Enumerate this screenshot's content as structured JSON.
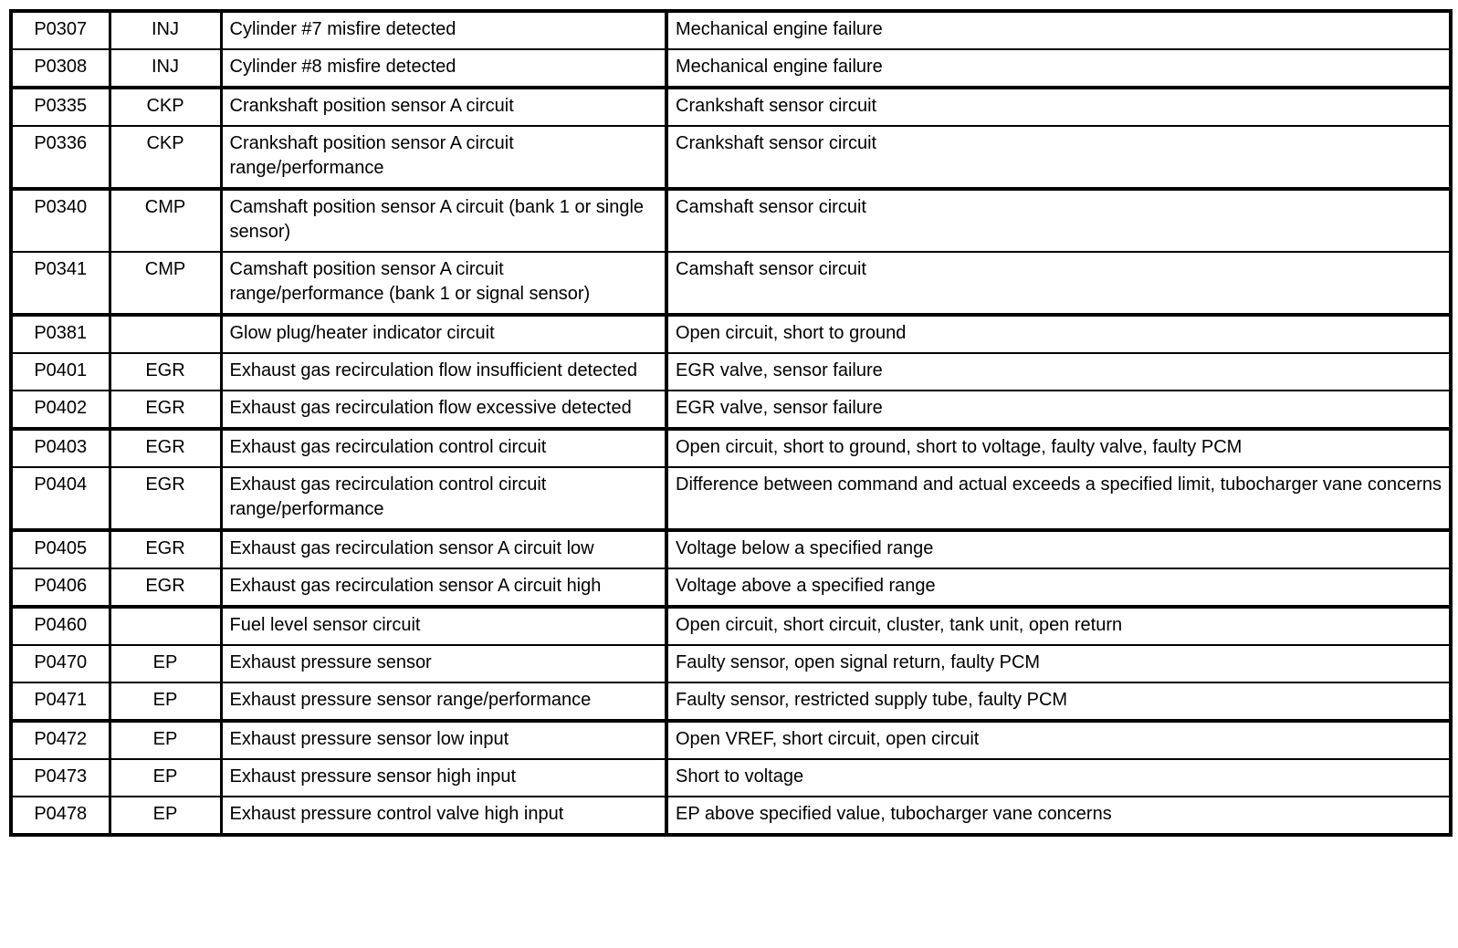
{
  "page": {
    "kind": "diagnostic-trouble-code-table",
    "background_color": "#ffffff",
    "border_color": "#000000",
    "text_color": "#000000"
  },
  "table": {
    "columns": [
      "code",
      "acronym",
      "description",
      "cause"
    ],
    "rows": [
      {
        "code": "P0307",
        "acronym": "INJ",
        "description": "Cylinder #7 misfire detected",
        "cause": "Mechanical engine failure",
        "section_end": false
      },
      {
        "code": "P0308",
        "acronym": "INJ",
        "description": "Cylinder #8 misfire detected",
        "cause": "Mechanical engine failure",
        "section_end": true
      },
      {
        "code": "P0335",
        "acronym": "CKP",
        "description": "Crankshaft position sensor A circuit",
        "cause": "Crankshaft sensor circuit",
        "section_end": false
      },
      {
        "code": "P0336",
        "acronym": "CKP",
        "description": "Crankshaft position sensor A circuit range/performance",
        "cause": "Crankshaft sensor circuit",
        "section_end": true
      },
      {
        "code": "P0340",
        "acronym": "CMP",
        "description": "Camshaft position sensor A circuit (bank 1 or single sensor)",
        "cause": "Camshaft sensor circuit",
        "section_end": false
      },
      {
        "code": "P0341",
        "acronym": "CMP",
        "description": "Camshaft position sensor A circuit range/performance (bank 1 or signal sensor)",
        "cause": "Camshaft sensor circuit",
        "section_end": true
      },
      {
        "code": "P0381",
        "acronym": "",
        "description": "Glow plug/heater indicator circuit",
        "cause": "Open circuit, short to ground",
        "section_end": false
      },
      {
        "code": "P0401",
        "acronym": "EGR",
        "description": "Exhaust gas recirculation flow insufficient detected",
        "cause": "EGR valve, sensor failure",
        "section_end": false
      },
      {
        "code": "P0402",
        "acronym": "EGR",
        "description": "Exhaust gas recirculation flow excessive detected",
        "cause": "EGR valve, sensor failure",
        "section_end": true
      },
      {
        "code": "P0403",
        "acronym": "EGR",
        "description": "Exhaust gas recirculation control circuit",
        "cause": "Open circuit, short to ground, short to voltage, faulty valve, faulty PCM",
        "section_end": false
      },
      {
        "code": "P0404",
        "acronym": "EGR",
        "description": "Exhaust gas recirculation control circuit range/performance",
        "cause": "Difference between command and actual exceeds a specified limit, tubocharger vane concerns",
        "section_end": true
      },
      {
        "code": "P0405",
        "acronym": "EGR",
        "description": "Exhaust gas recirculation sensor A circuit low",
        "cause": "Voltage below a specified range",
        "section_end": false
      },
      {
        "code": "P0406",
        "acronym": "EGR",
        "description": "Exhaust gas recirculation sensor A circuit high",
        "cause": "Voltage above a specified range",
        "section_end": true
      },
      {
        "code": "P0460",
        "acronym": "",
        "description": "Fuel level sensor circuit",
        "cause": "Open circuit, short circuit, cluster, tank unit, open return",
        "section_end": false
      },
      {
        "code": "P0470",
        "acronym": "EP",
        "description": "Exhaust pressure sensor",
        "cause": "Faulty sensor, open signal return, faulty PCM",
        "section_end": false
      },
      {
        "code": "P0471",
        "acronym": "EP",
        "description": "Exhaust pressure sensor range/performance",
        "cause": "Faulty sensor, restricted supply tube, faulty PCM",
        "section_end": true
      },
      {
        "code": "P0472",
        "acronym": "EP",
        "description": "Exhaust pressure sensor low input",
        "cause": "Open VREF, short circuit, open circuit",
        "section_end": false
      },
      {
        "code": "P0473",
        "acronym": "EP",
        "description": "Exhaust pressure sensor high input",
        "cause": "Short to voltage",
        "section_end": false
      },
      {
        "code": "P0478",
        "acronym": "EP",
        "description": "Exhaust pressure control valve high input",
        "cause": "EP above specified value, tubocharger vane concerns",
        "section_end": false
      }
    ]
  }
}
